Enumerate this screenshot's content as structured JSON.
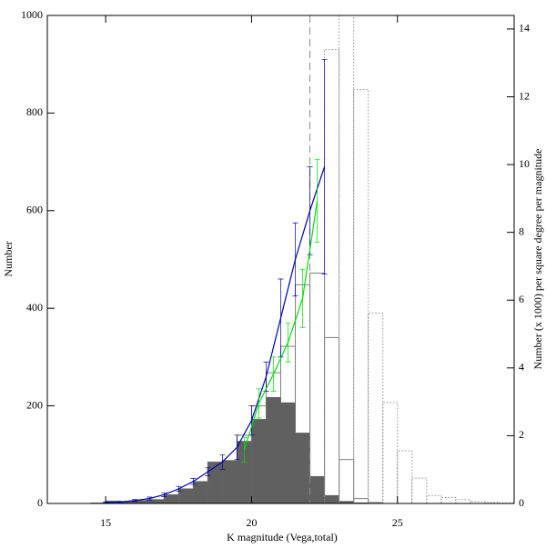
{
  "chart_data": {
    "type": "histogram",
    "xlabel": "K magnitude (Vega,total)",
    "ylabel": "Number",
    "y2label": "Number (x 1000) per square degree per magnitude",
    "xlim": [
      13,
      29
    ],
    "xticks": [
      15,
      20,
      25
    ],
    "ylim": [
      0,
      1000
    ],
    "yticks": [
      0,
      200,
      400,
      600,
      800,
      1000
    ],
    "y2lim": [
      0,
      14.4
    ],
    "y2ticks": [
      0,
      2,
      4,
      6,
      8,
      10,
      12,
      14
    ],
    "vline": 22,
    "histograms": [
      {
        "style": "outline",
        "color": "#808080",
        "bins": [
          14.5,
          15,
          15.5,
          16,
          16.5,
          17,
          17.5,
          18,
          18.5,
          19,
          19.5,
          20,
          20.5,
          21,
          21.5,
          22,
          22.5,
          23,
          23.5,
          24,
          24.5
        ],
        "values": [
          1,
          5,
          4,
          6,
          8,
          18,
          30,
          45,
          85,
          88,
          140,
          200,
          268,
          322,
          448,
          472,
          340,
          90,
          10,
          2
        ]
      },
      {
        "style": "filled",
        "color": "#606060",
        "bins": [
          14.5,
          15,
          15.5,
          16,
          16.5,
          17,
          17.5,
          18,
          18.5,
          19,
          19.5,
          20,
          20.5,
          21,
          21.5,
          22,
          22.5,
          23,
          23.5,
          24,
          24.5
        ],
        "values": [
          1,
          5,
          4,
          6,
          8,
          18,
          30,
          45,
          85,
          88,
          128,
          173,
          218,
          207,
          145,
          56,
          17,
          5,
          2,
          1
        ]
      },
      {
        "style": "dotted",
        "color": "#909090",
        "bins": [
          22.5,
          23,
          23.5,
          24,
          24.5,
          25,
          25.5,
          26,
          26.5,
          27,
          27.5,
          28,
          28.5,
          29
        ],
        "values": [
          930,
          1200,
          848,
          390,
          207,
          108,
          52,
          16,
          12,
          8,
          4,
          2,
          1
        ]
      }
    ],
    "series": [
      {
        "color": "#0000b0",
        "x": [
          15,
          15.5,
          16,
          16.5,
          17,
          17.5,
          18,
          18.5,
          19,
          19.5,
          20,
          20.5,
          21,
          21.5,
          22,
          22.5
        ],
        "values": [
          2,
          3,
          6,
          10,
          18,
          30,
          45,
          65,
          85,
          115,
          170,
          260,
          380,
          500,
          600,
          690
        ],
        "errors": [
          1,
          1,
          2,
          3,
          4,
          5,
          6,
          8,
          15,
          25,
          30,
          30,
          80,
          75,
          90,
          220
        ]
      },
      {
        "color": "#00e000",
        "x": [
          19.75,
          20.25,
          20.75,
          21.25,
          21.75,
          22.25
        ],
        "values": [
          110,
          205,
          265,
          330,
          420,
          620
        ],
        "errors": [
          25,
          30,
          35,
          40,
          60,
          85
        ]
      }
    ]
  }
}
